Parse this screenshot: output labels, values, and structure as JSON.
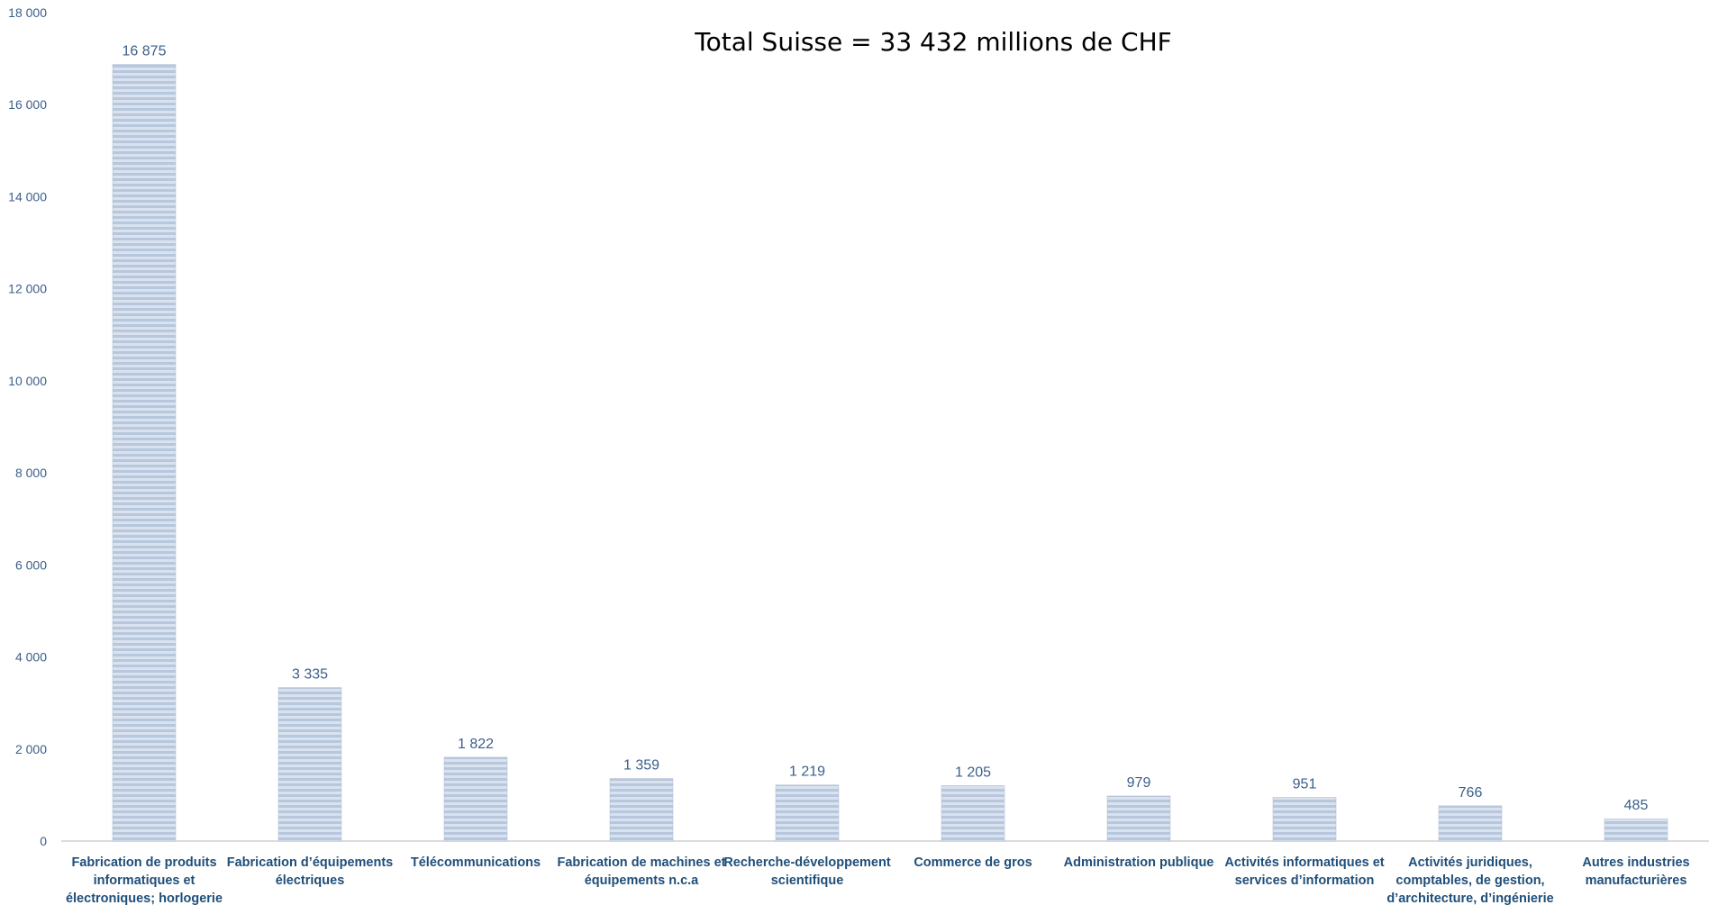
{
  "chart_data": {
    "type": "bar",
    "title": "Total Suisse = 33 432 millions de CHF",
    "xlabel": "",
    "ylabel": "",
    "ylim": [
      0,
      18000
    ],
    "yticks": [
      0,
      2000,
      4000,
      6000,
      8000,
      10000,
      12000,
      14000,
      16000,
      18000
    ],
    "ytick_labels": [
      "0",
      "2 000",
      "4 000",
      "6 000",
      "8 000",
      "10 000",
      "12 000",
      "14 000",
      "16 000",
      "18 000"
    ],
    "grid": false,
    "legend": "none",
    "categories": [
      [
        "Fabrication de produits",
        "informatiques et",
        "électroniques; horlogerie"
      ],
      [
        "Fabrication d’équipements",
        "électriques"
      ],
      [
        "Télécommunications"
      ],
      [
        "Fabrication de machines et",
        "équipements n.c.a"
      ],
      [
        "Recherche-développement",
        "scientifique"
      ],
      [
        "Commerce de gros"
      ],
      [
        "Administration publique"
      ],
      [
        "Activités informatiques et",
        "services d’information"
      ],
      [
        "Activités juridiques,",
        "comptables, de gestion,",
        "d’architecture, d’ingénierie"
      ],
      [
        "Autres industries",
        "manufacturières"
      ]
    ],
    "values": [
      16875,
      3335,
      1822,
      1359,
      1219,
      1205,
      979,
      951,
      766,
      485
    ],
    "data_labels": [
      "16 875",
      "3 335",
      "1 822",
      "1 359",
      "1 219",
      "1 205",
      "979",
      "951",
      "766",
      "485"
    ],
    "colors": {
      "bar": "#b7c7dd",
      "bar_stripe": "#d9e2ee",
      "label": "#3b5f8a",
      "category": "#1f4e79",
      "axis": "#d0d0d0"
    }
  }
}
